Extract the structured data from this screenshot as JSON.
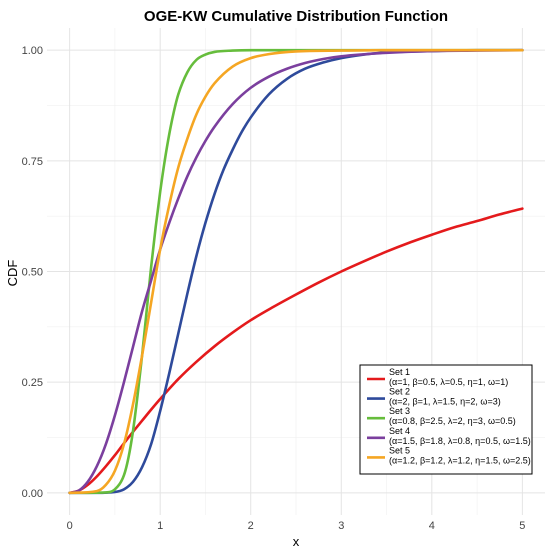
{
  "chart_data": {
    "type": "line",
    "title": "OGE-KW Cumulative Distribution Function",
    "xlabel": "x",
    "ylabel": "CDF",
    "xlim": [
      -0.25,
      5.25
    ],
    "ylim": [
      -0.05,
      1.05
    ],
    "xticks": [
      0,
      1,
      2,
      3,
      4,
      5
    ],
    "xtick_labels": [
      "0",
      "1",
      "2",
      "3",
      "4",
      "5"
    ],
    "yticks": [
      0,
      0.25,
      0.5,
      0.75,
      1
    ],
    "ytick_labels": [
      "0.00",
      "0.25",
      "0.50",
      "0.75",
      "1.00"
    ],
    "grid": true,
    "legend_position": "bottom-right",
    "series": [
      {
        "name": "Set 1",
        "params": "(α=1, β=0.5, λ=0.5, η=1, ω=1)",
        "color": "#e41a1c",
        "x": [
          0,
          0.1,
          0.2,
          0.3,
          0.4,
          0.5,
          0.6,
          0.7,
          0.8,
          0.9,
          1.0,
          1.2,
          1.4,
          1.6,
          1.8,
          2.0,
          2.25,
          2.5,
          2.75,
          3.0,
          3.25,
          3.5,
          3.75,
          4.0,
          4.25,
          4.5,
          4.75,
          5.0
        ],
        "y": [
          0,
          0.005,
          0.018,
          0.037,
          0.06,
          0.085,
          0.112,
          0.138,
          0.163,
          0.188,
          0.212,
          0.257,
          0.296,
          0.331,
          0.362,
          0.39,
          0.42,
          0.448,
          0.475,
          0.5,
          0.523,
          0.545,
          0.565,
          0.583,
          0.6,
          0.614,
          0.629,
          0.642
        ]
      },
      {
        "name": "Set 2",
        "params": "(α=2, β=1, λ=1.5, η=2, ω=3)",
        "color": "#2e4a9b",
        "x": [
          0,
          0.3,
          0.5,
          0.6,
          0.7,
          0.8,
          0.9,
          1.0,
          1.1,
          1.2,
          1.3,
          1.4,
          1.5,
          1.6,
          1.7,
          1.8,
          1.9,
          2.0,
          2.2,
          2.4,
          2.6,
          2.8,
          3.0,
          3.25,
          3.5,
          4.0,
          4.5,
          5.0
        ],
        "y": [
          0,
          0,
          0.002,
          0.008,
          0.025,
          0.058,
          0.11,
          0.185,
          0.27,
          0.36,
          0.45,
          0.535,
          0.61,
          0.675,
          0.73,
          0.775,
          0.815,
          0.848,
          0.9,
          0.935,
          0.958,
          0.972,
          0.982,
          0.99,
          0.995,
          0.998,
          1.0,
          1.0
        ]
      },
      {
        "name": "Set 3",
        "params": "(α=0.8, β=2.5, λ=2, η=3, ω=0.5)",
        "color": "#66bd3c",
        "x": [
          0,
          0.4,
          0.5,
          0.6,
          0.65,
          0.7,
          0.75,
          0.8,
          0.85,
          0.9,
          0.95,
          1.0,
          1.05,
          1.1,
          1.15,
          1.2,
          1.3,
          1.4,
          1.5,
          1.6,
          1.8,
          2.0,
          2.5,
          3.0,
          4.0,
          5.0
        ],
        "y": [
          0,
          0.001,
          0.008,
          0.04,
          0.08,
          0.14,
          0.22,
          0.31,
          0.41,
          0.51,
          0.6,
          0.68,
          0.75,
          0.81,
          0.86,
          0.9,
          0.95,
          0.978,
          0.99,
          0.996,
          0.999,
          1.0,
          1.0,
          1.0,
          1.0,
          1.0
        ]
      },
      {
        "name": "Set 4",
        "params": "(α=1.5, β=1.8, λ=0.8, η=0.5, ω=1.5)",
        "color": "#7b3f9e",
        "x": [
          0,
          0.1,
          0.2,
          0.3,
          0.4,
          0.5,
          0.6,
          0.7,
          0.8,
          0.9,
          1.0,
          1.1,
          1.2,
          1.3,
          1.4,
          1.5,
          1.6,
          1.8,
          2.0,
          2.2,
          2.4,
          2.6,
          2.8,
          3.0,
          3.5,
          4.0,
          4.5,
          5.0
        ],
        "y": [
          0,
          0.005,
          0.025,
          0.06,
          0.11,
          0.175,
          0.25,
          0.33,
          0.41,
          0.48,
          0.55,
          0.61,
          0.665,
          0.715,
          0.758,
          0.795,
          0.827,
          0.878,
          0.915,
          0.94,
          0.958,
          0.971,
          0.98,
          0.986,
          0.994,
          0.998,
          0.999,
          1.0
        ]
      },
      {
        "name": "Set 5",
        "params": "(α=1.2, β=1.2, λ=1.2, η=1.5, ω=2.5)",
        "color": "#f5a623",
        "x": [
          0,
          0.3,
          0.4,
          0.5,
          0.6,
          0.7,
          0.8,
          0.9,
          1.0,
          1.1,
          1.2,
          1.3,
          1.4,
          1.5,
          1.6,
          1.8,
          2.0,
          2.2,
          2.5,
          3.0,
          3.5,
          4.0,
          5.0
        ],
        "y": [
          0,
          0.004,
          0.018,
          0.05,
          0.11,
          0.2,
          0.31,
          0.43,
          0.55,
          0.65,
          0.735,
          0.8,
          0.855,
          0.895,
          0.925,
          0.963,
          0.982,
          0.991,
          0.997,
          0.999,
          1.0,
          1.0,
          1.0
        ]
      }
    ]
  }
}
